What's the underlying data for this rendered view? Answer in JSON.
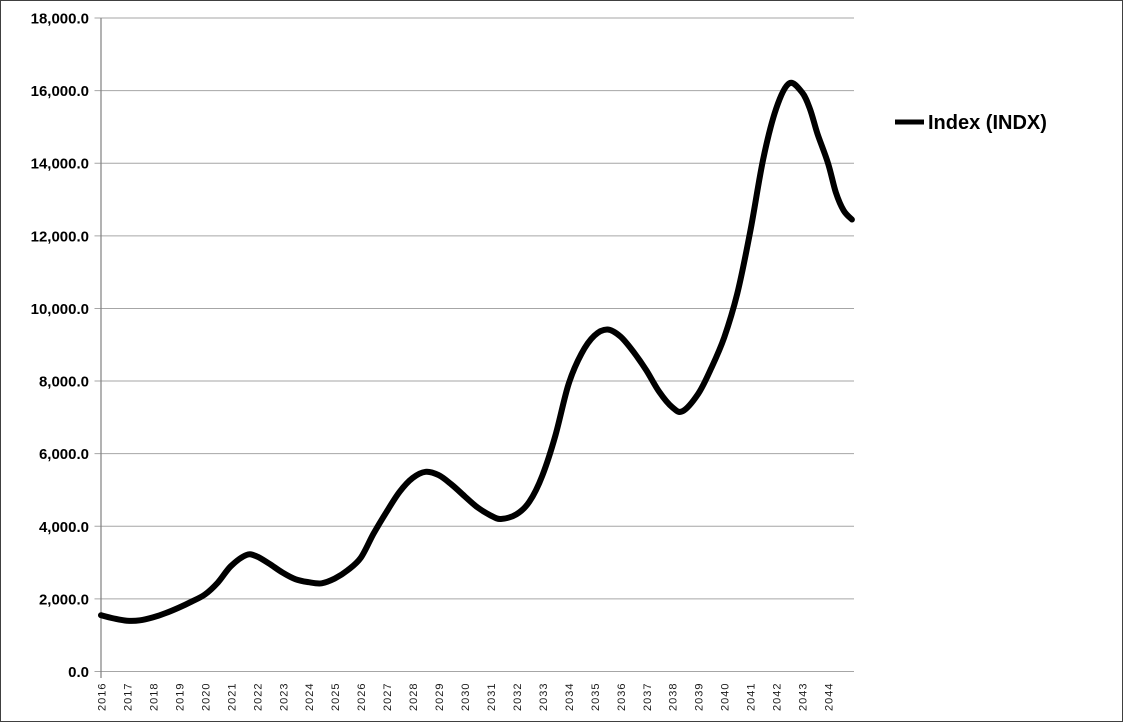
{
  "window": {
    "background": "#ffffff",
    "border_color": "#404040"
  },
  "chart_data": {
    "type": "line",
    "title": "",
    "legend": {
      "position": "right",
      "entries": [
        "Index (INDX)"
      ]
    },
    "grid": {
      "show": true,
      "color": "#a6a6a6"
    },
    "axis_color": "#808080",
    "x_axis": {
      "label": "",
      "domain": [
        2016,
        2045
      ],
      "tick_labels": [
        "2016",
        "2017",
        "2018",
        "2019",
        "2020",
        "2021",
        "2022",
        "2023",
        "2024",
        "2025",
        "2026",
        "2027",
        "2028",
        "2029",
        "2030",
        "2031",
        "2032",
        "2033",
        "2034",
        "2035",
        "2036",
        "2037",
        "2038",
        "2039",
        "2040",
        "2041",
        "2042",
        "2043",
        "2044"
      ],
      "tick_label_rotation_deg": -90
    },
    "y_axis": {
      "label": "",
      "domain": [
        0,
        18000
      ],
      "tick_step": 2000,
      "tick_labels": [
        "0.0",
        "2,000.0",
        "4,000.0",
        "6,000.0",
        "8,000.0",
        "10,000.0",
        "12,000.0",
        "14,000.0",
        "16,000.0",
        "18,000.0"
      ]
    },
    "series": [
      {
        "name": "Index (INDX)",
        "color": "#000000",
        "stroke_width": 6,
        "points": [
          [
            2016.0,
            1550
          ],
          [
            2016.5,
            1460
          ],
          [
            2017.0,
            1400
          ],
          [
            2017.5,
            1410
          ],
          [
            2018.0,
            1490
          ],
          [
            2018.5,
            1610
          ],
          [
            2019.0,
            1760
          ],
          [
            2019.5,
            1930
          ],
          [
            2020.0,
            2120
          ],
          [
            2020.5,
            2450
          ],
          [
            2021.0,
            2900
          ],
          [
            2021.6,
            3210
          ],
          [
            2022.0,
            3170
          ],
          [
            2022.5,
            2960
          ],
          [
            2023.0,
            2720
          ],
          [
            2023.5,
            2540
          ],
          [
            2024.0,
            2460
          ],
          [
            2024.5,
            2430
          ],
          [
            2025.0,
            2560
          ],
          [
            2025.5,
            2790
          ],
          [
            2026.0,
            3130
          ],
          [
            2026.5,
            3800
          ],
          [
            2027.0,
            4400
          ],
          [
            2027.5,
            4950
          ],
          [
            2028.0,
            5330
          ],
          [
            2028.5,
            5500
          ],
          [
            2029.0,
            5410
          ],
          [
            2029.5,
            5150
          ],
          [
            2030.0,
            4830
          ],
          [
            2030.5,
            4520
          ],
          [
            2031.0,
            4300
          ],
          [
            2031.4,
            4200
          ],
          [
            2032.0,
            4330
          ],
          [
            2032.5,
            4680
          ],
          [
            2033.0,
            5400
          ],
          [
            2033.5,
            6500
          ],
          [
            2034.0,
            7900
          ],
          [
            2034.5,
            8750
          ],
          [
            2035.0,
            9250
          ],
          [
            2035.5,
            9420
          ],
          [
            2036.0,
            9230
          ],
          [
            2036.5,
            8810
          ],
          [
            2037.0,
            8300
          ],
          [
            2037.5,
            7700
          ],
          [
            2038.0,
            7280
          ],
          [
            2038.4,
            7170
          ],
          [
            2039.0,
            7650
          ],
          [
            2039.5,
            8350
          ],
          [
            2040.0,
            9200
          ],
          [
            2040.5,
            10400
          ],
          [
            2041.0,
            12100
          ],
          [
            2041.5,
            14100
          ],
          [
            2042.0,
            15500
          ],
          [
            2042.5,
            16200
          ],
          [
            2043.0,
            15950
          ],
          [
            2043.3,
            15500
          ],
          [
            2043.6,
            14800
          ],
          [
            2044.0,
            14000
          ],
          [
            2044.3,
            13200
          ],
          [
            2044.6,
            12700
          ],
          [
            2044.92,
            12450
          ]
        ]
      }
    ]
  }
}
